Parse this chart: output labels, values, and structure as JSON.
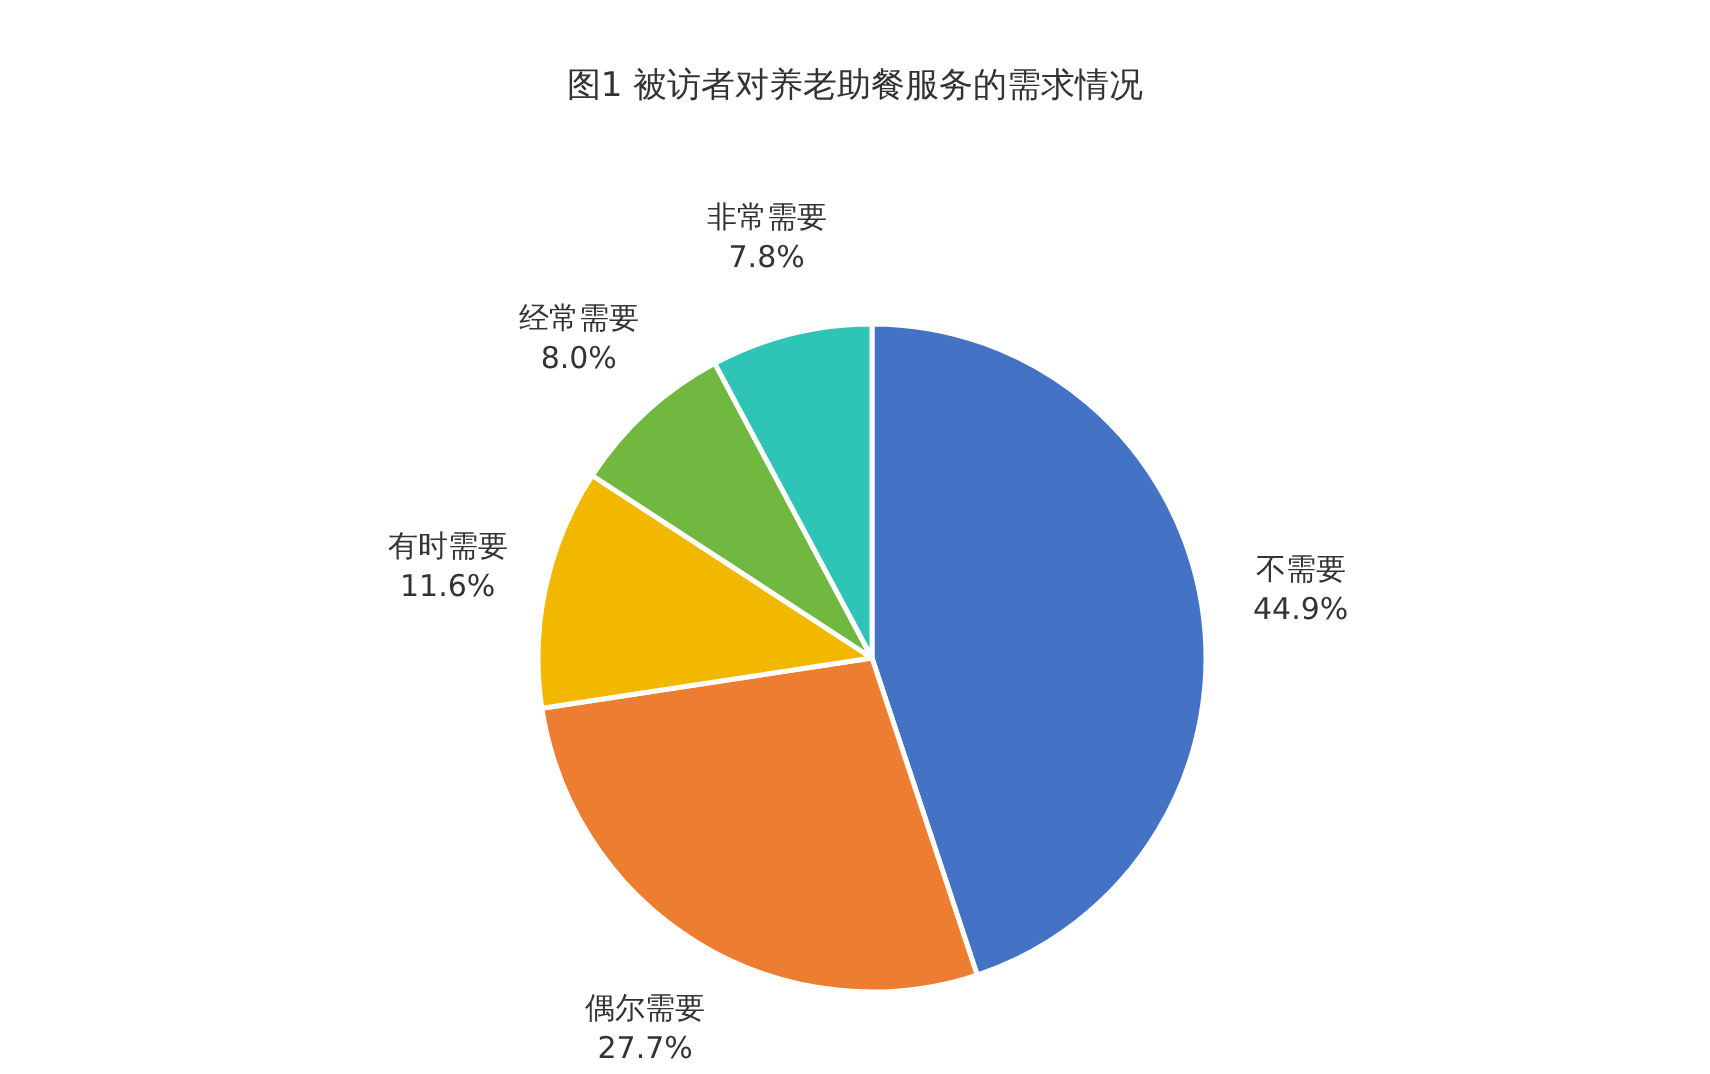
{
  "chart_data": {
    "type": "pie",
    "title": "图1  被访者对养老助餐服务的需求情况",
    "categories": [
      "不需要",
      "偶尔需要",
      "有时需要",
      "经常需要",
      "非常需要"
    ],
    "values": [
      44.9,
      27.7,
      11.6,
      8.0,
      7.8
    ],
    "value_labels": [
      "44.9%",
      "27.7%",
      "11.6%",
      "8.0%",
      "7.8%"
    ],
    "colors": [
      "#4472c4",
      "#ed7d31",
      "#f2b800",
      "#70b83f",
      "#2ec4b6"
    ]
  }
}
